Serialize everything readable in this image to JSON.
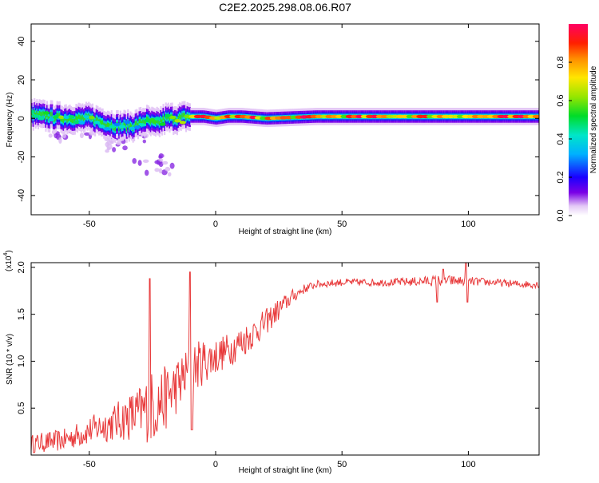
{
  "title": "C2E2.2025.298.08.06.R07",
  "chart_data": [
    {
      "type": "heatmap",
      "name": "spectrogram",
      "xlabel": "Height of straight line (km)",
      "ylabel": "Frequency (Hz)",
      "xlim": [
        -73,
        128
      ],
      "ylim": [
        -50,
        49
      ],
      "xticks": [
        -50,
        0,
        50,
        100
      ],
      "yticks": [
        -40,
        -20,
        0,
        20,
        40
      ],
      "xtick_labels": [
        "-50",
        "0",
        "50",
        "100"
      ],
      "ytick_labels": [
        "-40",
        "-20",
        "0",
        "20",
        "40"
      ],
      "colorbar": {
        "label": "Normalized spectral amplitude",
        "range": [
          0,
          1
        ],
        "ticks": [
          0.0,
          0.2,
          0.4,
          0.6,
          0.8
        ],
        "tick_labels": [
          "0.0",
          "0.2",
          "0.4",
          "0.6",
          "0.8"
        ]
      },
      "ridge": {
        "x": [
          -72,
          -60,
          -50,
          -40,
          -33,
          -28,
          -24,
          -20,
          -15,
          -12,
          -5,
          0,
          5,
          10,
          20,
          40,
          60,
          80,
          100,
          128
        ],
        "freq": [
          2,
          0,
          0,
          -4,
          -4,
          -1,
          -3,
          0,
          0,
          1,
          1,
          0,
          1,
          1,
          0,
          1,
          1,
          1,
          1,
          1
        ],
        "peak_amplitude": 1.0
      },
      "scatter_clusters": [
        {
          "x": -60,
          "freq": -8,
          "amplitude": 0.05
        },
        {
          "x": -45,
          "freq": -10,
          "amplitude": 0.05
        },
        {
          "x": -35,
          "freq": -12,
          "amplitude": 0.05
        },
        {
          "x": -25,
          "freq": -24,
          "amplitude": 0.05
        }
      ]
    },
    {
      "type": "line",
      "name": "snr",
      "xlabel": "Height of straight line (km)",
      "ylabel": "SNR (10 * v/v)",
      "multiplier_label": "(x10",
      "multiplier_exp": "4",
      "multiplier_close": ")",
      "xlim": [
        -73,
        128
      ],
      "ylim": [
        0,
        2.05
      ],
      "xticks": [
        -50,
        0,
        50,
        100
      ],
      "yticks": [
        0.5,
        1.0,
        1.5,
        2.0
      ],
      "xtick_labels": [
        "-50",
        "0",
        "50",
        "100"
      ],
      "ytick_labels": [
        "0.5",
        "1.0",
        "1.5",
        "2.0"
      ],
      "color": "#e8393a",
      "envelope": {
        "x": [
          -73,
          -60,
          -50,
          -40,
          -30,
          -25,
          -20,
          -15,
          -10,
          -5,
          0,
          5,
          10,
          15,
          20,
          25,
          30,
          35,
          40,
          50,
          60,
          70,
          80,
          90,
          100,
          110,
          120,
          128
        ],
        "mean": [
          0.12,
          0.16,
          0.26,
          0.35,
          0.45,
          0.52,
          0.6,
          0.75,
          0.9,
          1.0,
          1.05,
          1.12,
          1.2,
          1.3,
          1.42,
          1.55,
          1.68,
          1.77,
          1.82,
          1.84,
          1.84,
          1.84,
          1.85,
          1.86,
          1.85,
          1.84,
          1.82,
          1.82
        ],
        "noise": [
          0.1,
          0.12,
          0.15,
          0.2,
          0.3,
          0.4,
          0.35,
          0.3,
          0.28,
          0.25,
          0.2,
          0.18,
          0.18,
          0.16,
          0.14,
          0.12,
          0.08,
          0.05,
          0.04,
          0.04,
          0.04,
          0.04,
          0.05,
          0.06,
          0.05,
          0.04,
          0.04,
          0.04
        ]
      },
      "spikes": [
        {
          "x": -26,
          "value": 1.88
        },
        {
          "x": -10,
          "value": 1.95
        },
        {
          "x": 99,
          "value": 2.05
        },
        {
          "x": 90,
          "value": 1.98
        }
      ],
      "dips": [
        {
          "x": -10,
          "value": 0.27
        },
        {
          "x": 87,
          "value": 1.63
        },
        {
          "x": 99,
          "value": 1.63
        }
      ]
    }
  ]
}
